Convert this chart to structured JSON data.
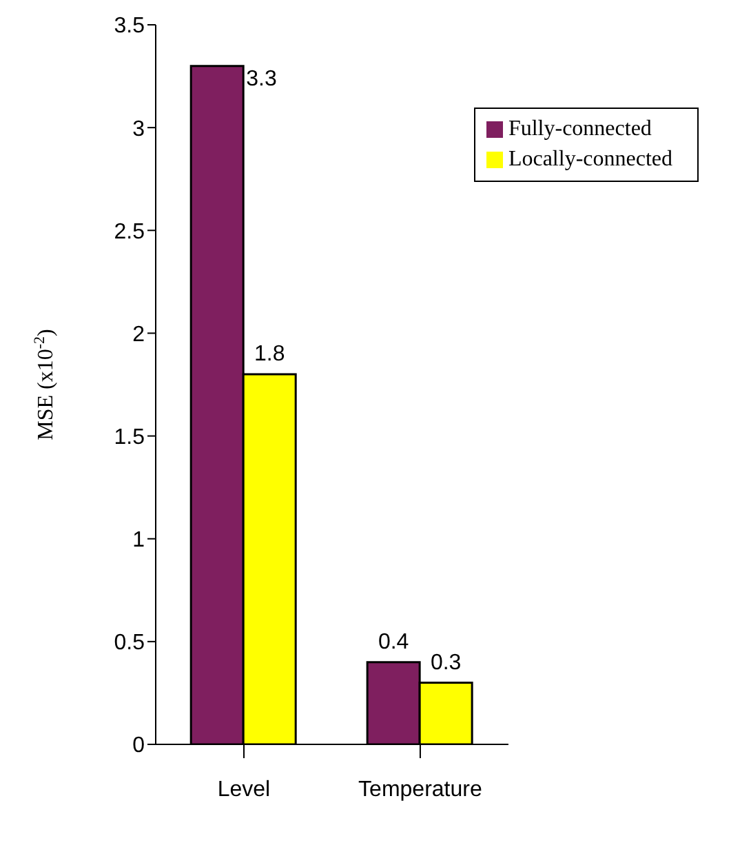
{
  "chart_data": {
    "type": "bar",
    "ylabel": "MSE (x10$^{-2}$)",
    "categories": [
      "Level",
      "Temperature"
    ],
    "series": [
      {
        "name": "Fully-connected",
        "color": "#7f1f5f",
        "values": [
          3.3,
          0.4
        ]
      },
      {
        "name": "Locally-connected",
        "color": "#ffff00",
        "values": [
          1.8,
          0.3
        ]
      }
    ],
    "ylim": [
      0,
      3.5
    ],
    "yticks": [
      0,
      0.5,
      1,
      1.5,
      2,
      2.5,
      3,
      3.5
    ],
    "data_labels": true,
    "legend": "top right",
    "grid": false
  }
}
